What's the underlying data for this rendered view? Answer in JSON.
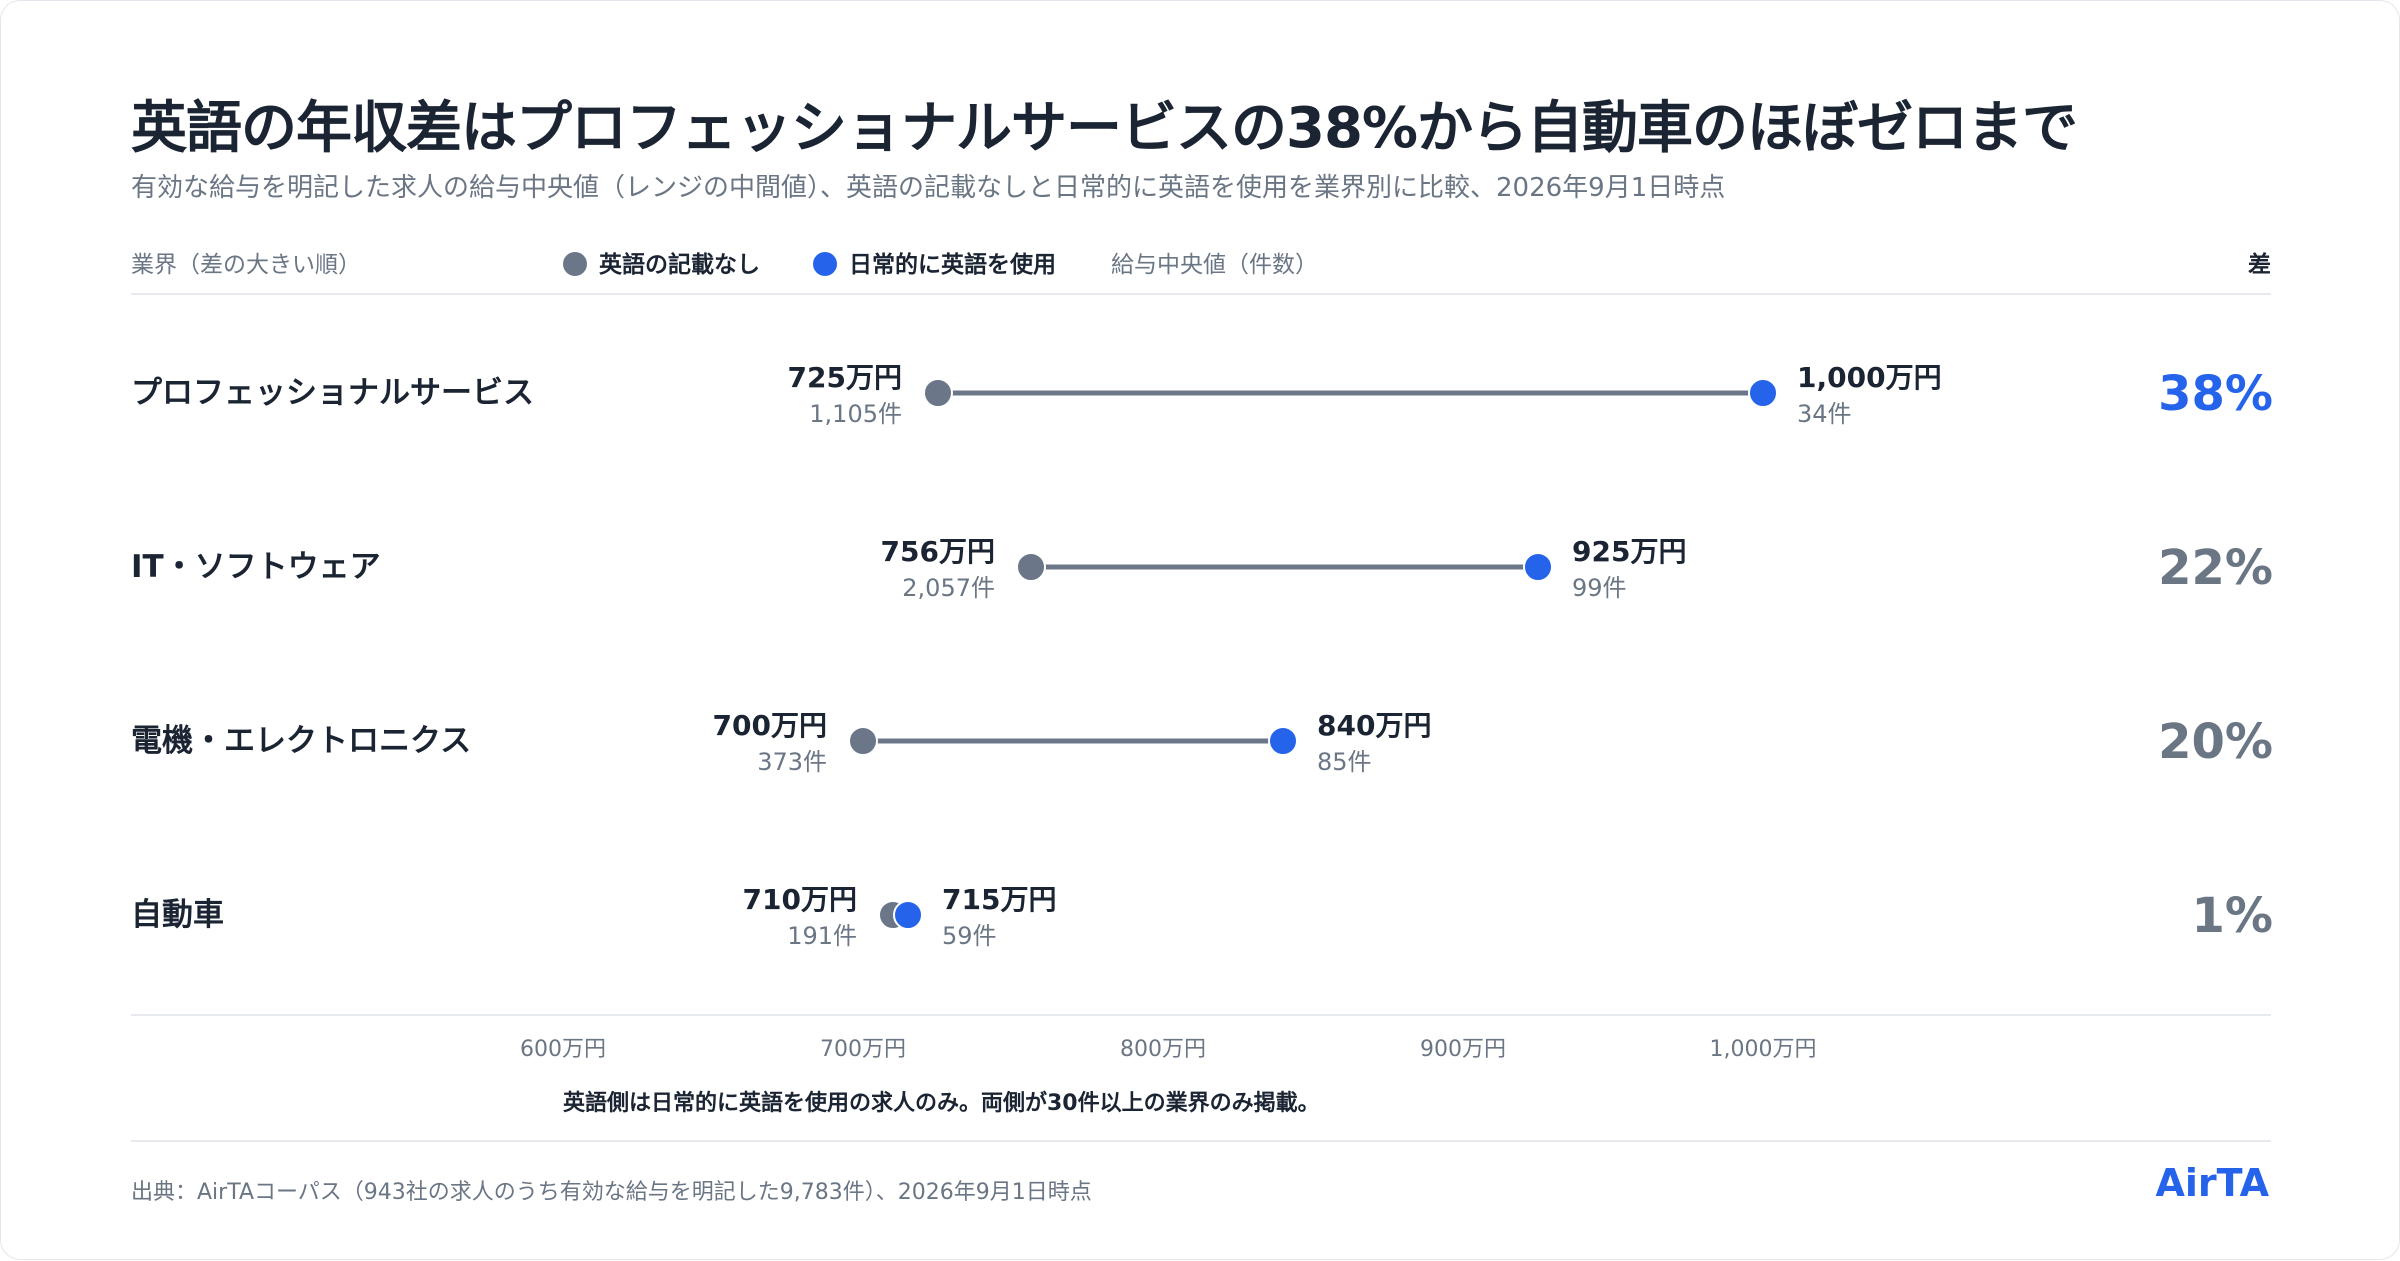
{
  "header": {
    "title": "英語の年収差はプロフェッショナルサービスの38%から自動車のほぼゼロまで",
    "subtitle": "有効な給与を明記した求人の給与中央値（レンジの中間値）、英語の記載なしと日常的に英語を使用を業界別に比較、2026年9月1日時点"
  },
  "columns": {
    "industry": "業界（差の大きい順）",
    "median": "給与中央値（件数）",
    "gap": "差"
  },
  "legend": {
    "no_english": "英語の記載なし",
    "daily_english": "日常的に英語を使用"
  },
  "colors": {
    "no_english": "#6b7689",
    "daily_english": "#2563eb",
    "connector": "#6b7689",
    "text": "#1b2433",
    "muted": "#6b7685",
    "accent": "#2563eb"
  },
  "chart_data": {
    "type": "dumbbell",
    "x_unit": "万円",
    "xlim": [
      555,
      1045
    ],
    "x_ticks": [
      {
        "value": 600,
        "label": "600万円"
      },
      {
        "value": 700,
        "label": "700万円"
      },
      {
        "value": 800,
        "label": "800万円"
      },
      {
        "value": 900,
        "label": "900万円"
      },
      {
        "value": 1000,
        "label": "1,000万円"
      }
    ],
    "series": [
      {
        "name": "英語の記載なし",
        "key": "no_english"
      },
      {
        "name": "日常的に英語を使用",
        "key": "daily_english"
      }
    ],
    "rows": [
      {
        "industry": "プロフェッショナルサービス",
        "no_english": {
          "value": 725,
          "label": "725万円",
          "count": "1,105件"
        },
        "daily_english": {
          "value": 1000,
          "label": "1,000万円",
          "count": "34件"
        },
        "gap": "38%",
        "highlight": true
      },
      {
        "industry": "IT・ソフトウェア",
        "no_english": {
          "value": 756,
          "label": "756万円",
          "count": "2,057件"
        },
        "daily_english": {
          "value": 925,
          "label": "925万円",
          "count": "99件"
        },
        "gap": "22%",
        "highlight": false
      },
      {
        "industry": "電機・エレクトロニクス",
        "no_english": {
          "value": 700,
          "label": "700万円",
          "count": "373件"
        },
        "daily_english": {
          "value": 840,
          "label": "840万円",
          "count": "85件"
        },
        "gap": "20%",
        "highlight": false
      },
      {
        "industry": "自動車",
        "no_english": {
          "value": 710,
          "label": "710万円",
          "count": "191件"
        },
        "daily_english": {
          "value": 715,
          "label": "715万円",
          "count": "59件"
        },
        "gap": "1%",
        "highlight": false
      }
    ]
  },
  "footer": {
    "note": "英語側は日常的に英語を使用の求人のみ。両側が30件以上の業界のみ掲載。",
    "source": "出典：AirTAコーパス（943社の求人のうち有効な給与を明記した9,783件）、2026年9月1日時点",
    "brand": "AirTA"
  }
}
